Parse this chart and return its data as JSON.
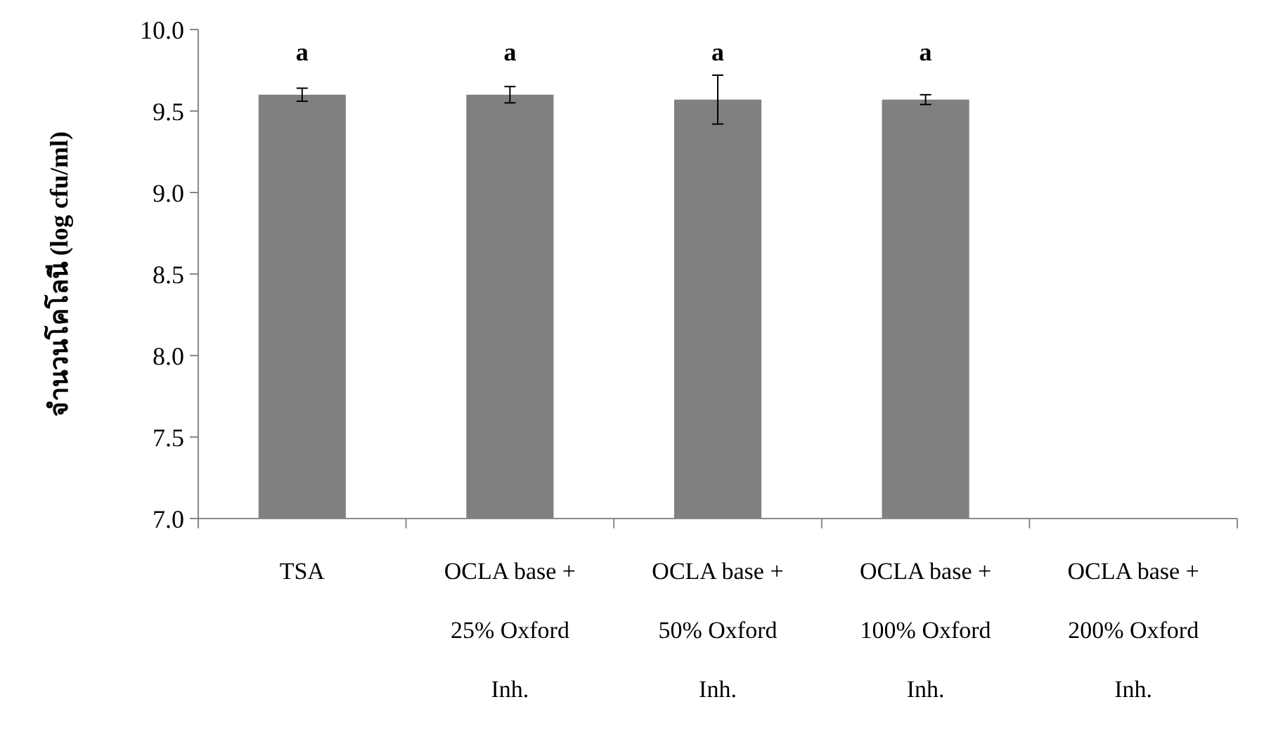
{
  "chart_data": {
    "type": "bar",
    "ylabel": "จำนวนโคโลนี (log cfu/ml)",
    "categories": [
      "TSA",
      "OCLA base + 25% Oxford Inh.",
      "OCLA base + 50% Oxford Inh.",
      "OCLA base + 100% Oxford Inh.",
      "OCLA base + 200% Oxford Inh."
    ],
    "values": [
      9.6,
      9.6,
      9.57,
      9.57,
      null
    ],
    "color": "#808080",
    "errors": [
      0.04,
      0.05,
      0.15,
      0.03,
      null
    ],
    "ylim": [
      7,
      10
    ],
    "yticks": [
      {
        "value": 7,
        "label": "7.0"
      },
      {
        "value": 7.5,
        "label": "7.5"
      },
      {
        "value": 8,
        "label": "8.0"
      },
      {
        "value": 8.5,
        "label": "8.5"
      },
      {
        "value": 9,
        "label": "9.0"
      },
      {
        "value": 9.5,
        "label": "9.5"
      },
      {
        "value": 10,
        "label": "10.0"
      }
    ],
    "annotations": [
      "a",
      "a",
      "a",
      "a"
    ]
  }
}
